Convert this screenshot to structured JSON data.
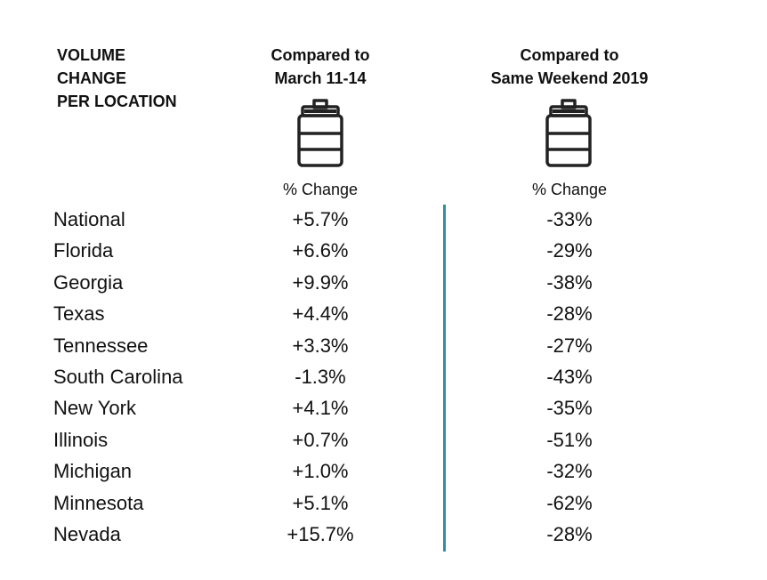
{
  "header": {
    "row_label": "VOLUME\nCHANGE\nPER LOCATION",
    "col1_title": "Compared to\nMarch 11-14",
    "col2_title": "Same Weekend 2019",
    "col2_title_prefix": "Compared to",
    "col1_sub": "% Change",
    "col2_sub": "% Change"
  },
  "icons": {
    "col1": "gas-pump-icon",
    "col2": "gas-pump-icon"
  },
  "colors": {
    "divider": "#2f8fa0"
  },
  "chart_data": {
    "type": "table",
    "columns": [
      "VOLUME CHANGE PER LOCATION",
      "Compared to March 11-14",
      "Compared to Same Weekend 2019"
    ],
    "rows": [
      {
        "location": "National",
        "vs_march": "+5.7%",
        "vs_2019": "-33%"
      },
      {
        "location": "Florida",
        "vs_march": "+6.6%",
        "vs_2019": "-29%"
      },
      {
        "location": "Georgia",
        "vs_march": "+9.9%",
        "vs_2019": "-38%"
      },
      {
        "location": "Texas",
        "vs_march": "+4.4%",
        "vs_2019": "-28%"
      },
      {
        "location": "Tennessee",
        "vs_march": "+3.3%",
        "vs_2019": "-27%"
      },
      {
        "location": "South Carolina",
        "vs_march": "-1.3%",
        "vs_2019": "-43%"
      },
      {
        "location": "New York",
        "vs_march": "+4.1%",
        "vs_2019": "-35%"
      },
      {
        "location": "Illinois",
        "vs_march": "+0.7%",
        "vs_2019": "-51%"
      },
      {
        "location": "Michigan",
        "vs_march": "+1.0%",
        "vs_2019": "-32%"
      },
      {
        "location": "Minnesota",
        "vs_march": "+5.1%",
        "vs_2019": "-62%"
      },
      {
        "location": "Nevada",
        "vs_march": "+15.7%",
        "vs_2019": "-28%"
      }
    ]
  }
}
